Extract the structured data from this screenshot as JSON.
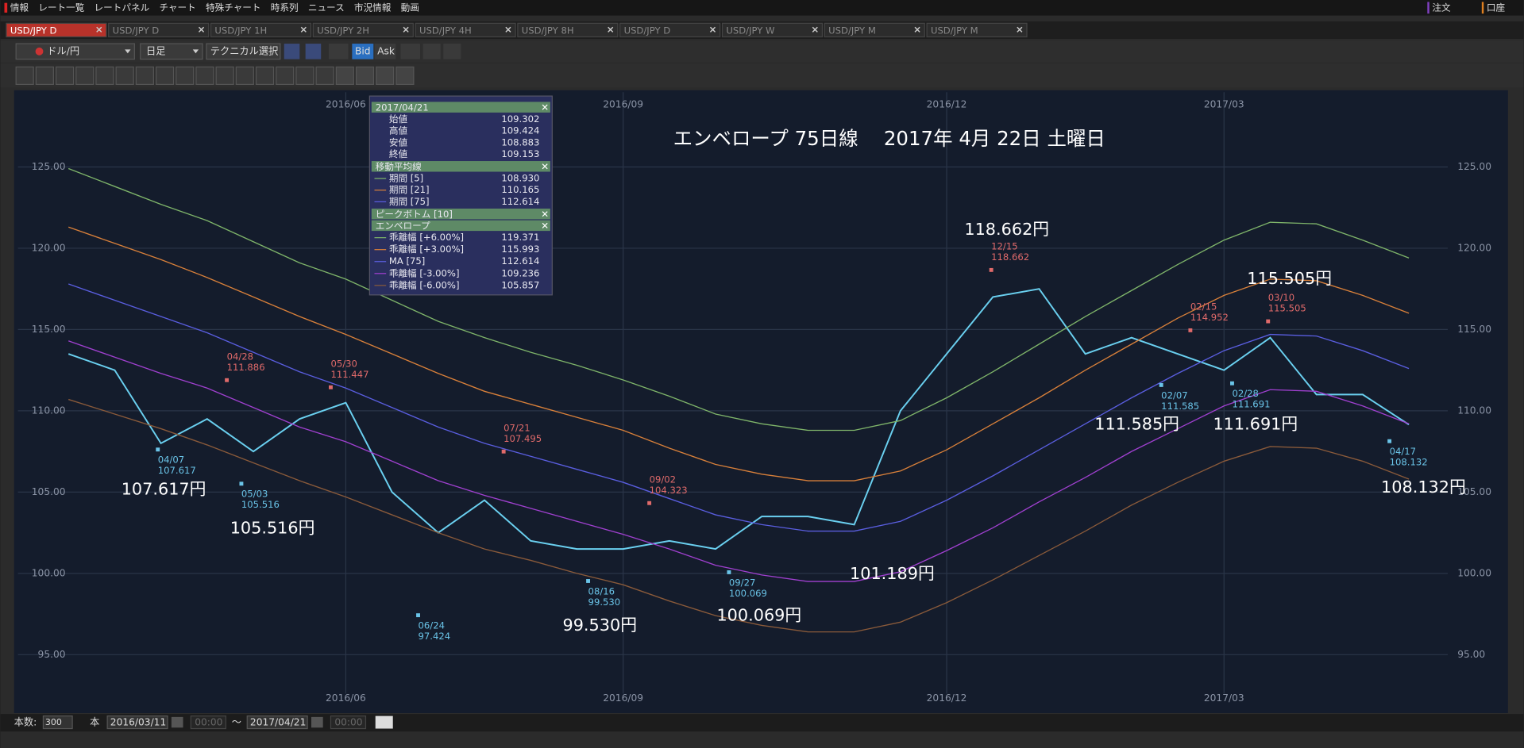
{
  "menu": {
    "items": [
      "情報",
      "レート一覧",
      "レートパネル",
      "チャート",
      "特殊チャート",
      "時系列",
      "ニュース",
      "市況情報",
      "動画"
    ],
    "right": [
      "注文",
      "口座"
    ]
  },
  "tabs": [
    "USD/JPY D",
    "USD/JPY D",
    "USD/JPY 1H",
    "USD/JPY 2H",
    "USD/JPY 4H",
    "USD/JPY 8H",
    "USD/JPY D",
    "USD/JPY W",
    "USD/JPY M",
    "USD/JPY M"
  ],
  "toolbar": {
    "pair": "ドル/円",
    "period": "日足",
    "technical": "テクニカル選択",
    "bid": "Bid",
    "ask": "Ask"
  },
  "chart_data": {
    "type": "line",
    "title": "エンベロープ 75日線　 2017年 4月 22日 土曜日",
    "categories": [
      null,
      null,
      null,
      null,
      null,
      null,
      "2016/06",
      null,
      null,
      null,
      null,
      null,
      "2016/09",
      null,
      null,
      null,
      null,
      null,
      null,
      "2016/12",
      null,
      null,
      null,
      null,
      null,
      "2017/03",
      null,
      null,
      null,
      null
    ],
    "ylim": [
      92.6,
      129.6
    ],
    "yticks": [
      {
        "value": 95,
        "label": "95.00"
      },
      {
        "value": 100,
        "label": "100.00"
      },
      {
        "value": 105,
        "label": "105.00"
      },
      {
        "value": 110,
        "label": "110.00"
      },
      {
        "value": 115,
        "label": "115.00"
      },
      {
        "value": 120,
        "label": "120.00"
      },
      {
        "value": 125,
        "label": "125.00"
      }
    ],
    "grid": true,
    "series": [
      {
        "name": "終値",
        "color": "#6ad0f0",
        "values": [
          113.5,
          112.5,
          108,
          109.5,
          107.5,
          109.5,
          110.5,
          105,
          102.5,
          104.5,
          102,
          101.5,
          101.5,
          102,
          101.5,
          103.5,
          103.5,
          103,
          110,
          113.5,
          117,
          117.5,
          113.5,
          114.5,
          113.5,
          112.5,
          114.5,
          111,
          111,
          109.15
        ]
      },
      {
        "name": "乖離幅 [+6.00%]",
        "color": "#7fb56a",
        "values": [
          124.9,
          123.8,
          122.7,
          121.7,
          120.4,
          119.1,
          118.1,
          116.8,
          115.5,
          114.5,
          113.6,
          112.8,
          111.9,
          110.9,
          109.8,
          109.2,
          108.8,
          108.8,
          109.4,
          110.8,
          112.4,
          114.1,
          115.8,
          117.4,
          119.0,
          120.5,
          121.6,
          121.5,
          120.5,
          119.4
        ]
      },
      {
        "name": "乖離幅 [+3.00%]",
        "color": "#d9803a",
        "values": [
          121.3,
          120.3,
          119.3,
          118.2,
          117.0,
          115.8,
          114.7,
          113.5,
          112.3,
          111.2,
          110.4,
          109.6,
          108.8,
          107.7,
          106.7,
          106.1,
          105.7,
          105.7,
          106.3,
          107.6,
          109.2,
          110.8,
          112.5,
          114.1,
          115.7,
          117.1,
          118.1,
          118.0,
          117.1,
          116.0
        ]
      },
      {
        "name": "MA [75]",
        "color": "#5a5ee0",
        "values": [
          117.8,
          116.8,
          115.8,
          114.8,
          113.6,
          112.4,
          111.4,
          110.2,
          109.0,
          108.0,
          107.2,
          106.4,
          105.6,
          104.6,
          103.6,
          103.0,
          102.6,
          102.6,
          103.2,
          104.5,
          106.0,
          107.6,
          109.2,
          110.8,
          112.3,
          113.7,
          114.7,
          114.6,
          113.7,
          112.6
        ]
      },
      {
        "name": "乖離幅 [-3.00%]",
        "color": "#a040d0",
        "values": [
          114.3,
          113.3,
          112.3,
          111.4,
          110.2,
          109.0,
          108.1,
          106.9,
          105.7,
          104.8,
          104.0,
          103.2,
          102.4,
          101.5,
          100.5,
          99.9,
          99.5,
          99.5,
          100.1,
          101.4,
          102.8,
          104.4,
          105.9,
          107.5,
          108.9,
          110.3,
          111.3,
          111.2,
          110.3,
          109.2
        ]
      },
      {
        "name": "乖離幅 [-6.00%]",
        "color": "#8a5a3a",
        "values": [
          110.7,
          109.8,
          108.9,
          107.9,
          106.8,
          105.7,
          104.7,
          103.6,
          102.5,
          101.5,
          100.8,
          100.0,
          99.3,
          98.3,
          97.4,
          96.8,
          96.4,
          96.4,
          97.0,
          98.2,
          99.6,
          101.1,
          102.6,
          104.2,
          105.6,
          106.9,
          107.8,
          107.7,
          106.9,
          105.8
        ]
      }
    ],
    "peaks": [
      {
        "date": "04/28",
        "value": 111.886
      },
      {
        "date": "05/30",
        "value": 111.447
      },
      {
        "date": "07/21",
        "value": 107.495
      },
      {
        "date": "09/02",
        "value": 104.323
      },
      {
        "date": "12/15",
        "value": 118.662
      },
      {
        "date": "02/15",
        "value": 114.952
      },
      {
        "date": "03/10",
        "value": 115.505
      }
    ],
    "bottoms": [
      {
        "date": "04/07",
        "value": 107.617
      },
      {
        "date": "05/03",
        "value": 105.516
      },
      {
        "date": "06/24",
        "value": 97.424
      },
      {
        "date": "08/16",
        "value": 99.53,
        "label": "99.530"
      },
      {
        "date": "09/27",
        "value": 100.069
      },
      {
        "date": "02/07",
        "value": 111.585
      },
      {
        "date": "02/28",
        "value": 111.691
      },
      {
        "date": "04/17",
        "value": 108.132
      }
    ],
    "callouts": [
      "107.617円",
      "105.516円",
      "99.530円",
      "100.069円",
      "101.189円",
      "118.662円",
      "111.585円",
      "111.691円",
      "115.505円",
      "108.132円"
    ]
  },
  "info_panel": {
    "date": "2017/04/21",
    "prices": [
      {
        "label": "始値",
        "value": "109.302"
      },
      {
        "label": "高値",
        "value": "109.424"
      },
      {
        "label": "安値",
        "value": "108.883"
      }
    ],
    "close": "109.153",
    "ma_title": "移動平均線",
    "ma": [
      {
        "label": "期間 [5]",
        "value": "108.930"
      },
      {
        "label": "期間 [21]",
        "value": "110.165"
      },
      {
        "label": "期間 [75]",
        "value": "112.614"
      }
    ],
    "peak_title": "ピークボトム [10]",
    "env_title": "エンベロープ",
    "env_values": [
      "119.371",
      "115.993",
      "112.614",
      "109.236",
      "105.857"
    ]
  },
  "footer": {
    "count_label": "本数:",
    "count": "300",
    "unit": "本",
    "from_date": "2016/03/11",
    "from_time": "00:00",
    "sep": "～",
    "to_date": "2017/04/21",
    "to_time": "00:00"
  }
}
